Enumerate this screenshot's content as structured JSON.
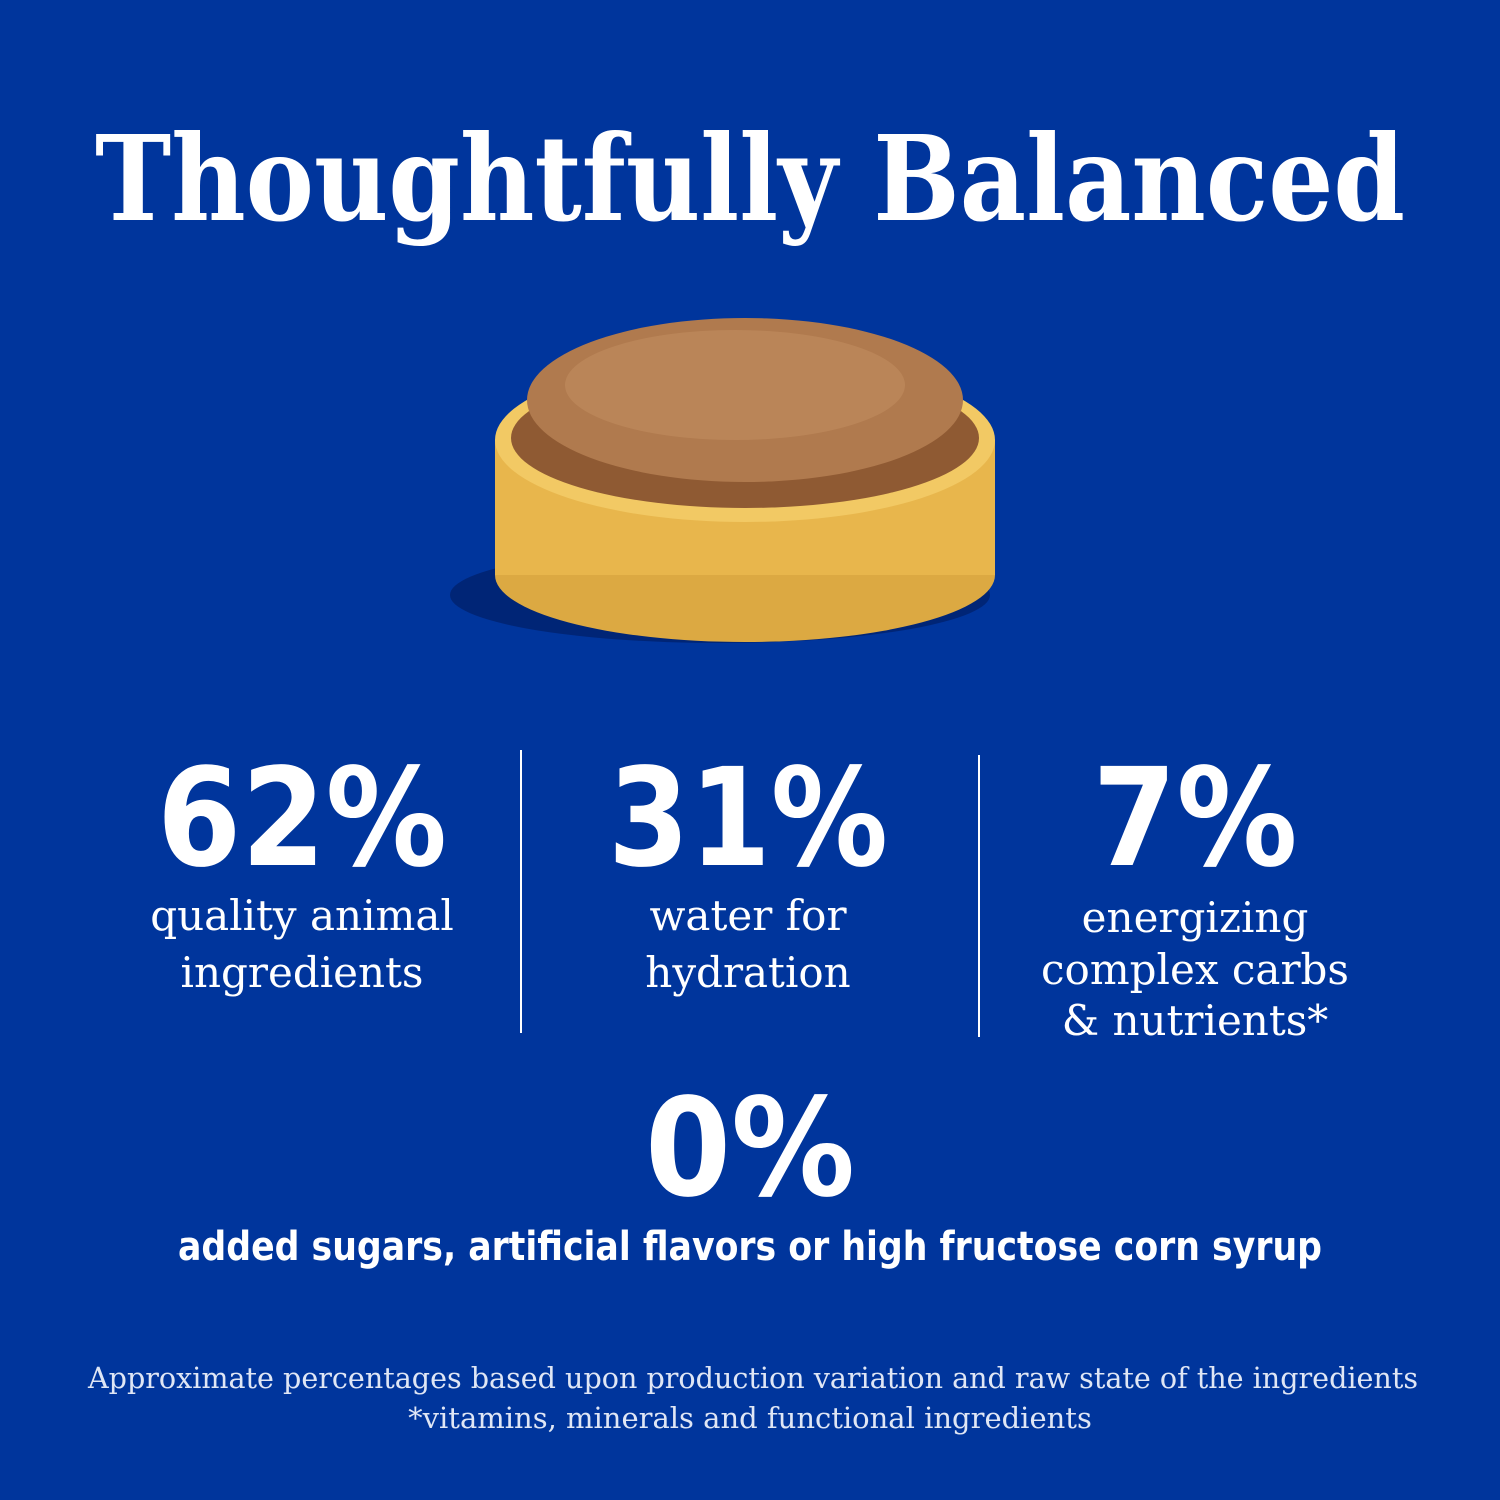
{
  "header": {
    "title": "Thoughtfully Balanced"
  },
  "stats": [
    {
      "value": "62%",
      "description": [
        "quality animal",
        "ingredients"
      ]
    },
    {
      "value": "31%",
      "description": [
        "water for",
        "hydration"
      ]
    },
    {
      "value": "7%",
      "description": [
        "energizing",
        "complex carbs",
        "& nutrients*"
      ]
    },
    {
      "value": "0%",
      "description": [
        "added sugars, artificial flavors or high fructose corn syrup"
      ]
    }
  ],
  "footer": {
    "notes": [
      "Approximate percentages based upon production variation and raw state of the ingredients",
      "*vitamins, minerals and functional ingredients"
    ]
  }
}
